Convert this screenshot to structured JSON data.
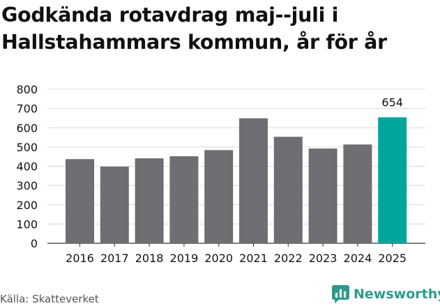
{
  "title": "Godkända rotavdrag maj--juli i Hallstahammars kommun, år för år",
  "source": "Källa: Skatteverket",
  "brand": {
    "name": "Newsworthy",
    "icon": "newsworthy-logo-icon"
  },
  "colors": {
    "bar": "#6e6e73",
    "highlight": "#00a69c",
    "grid": "#d9d9d9",
    "brand": "#2f9a8c"
  },
  "chart_data": {
    "type": "bar",
    "categories": [
      "2016",
      "2017",
      "2018",
      "2019",
      "2020",
      "2021",
      "2022",
      "2023",
      "2024",
      "2025"
    ],
    "values": [
      437,
      398,
      441,
      452,
      484,
      649,
      553,
      492,
      513,
      654
    ],
    "highlight_index": 9,
    "data_labels": {
      "9": "654"
    },
    "title": "Godkända rotavdrag maj--juli i Hallstahammars kommun, år för år",
    "xlabel": "",
    "ylabel": "",
    "ylim": [
      0,
      800
    ],
    "yticks": [
      0,
      100,
      200,
      300,
      400,
      500,
      600,
      700,
      800
    ],
    "grid": true,
    "legend": "none"
  }
}
